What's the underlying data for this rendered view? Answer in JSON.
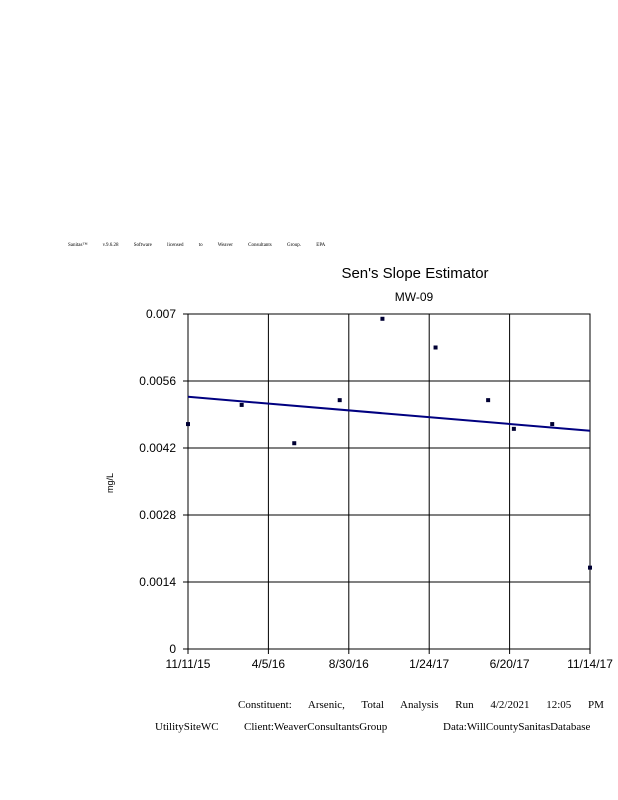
{
  "banner": "Sanitas™ v.9.6.28 Software licensed to Weaver Consultants Group. EPA",
  "chart_data": {
    "type": "scatter",
    "title": "Sen's Slope Estimator",
    "subtitle": "MW-09",
    "ylabel": "mg/L",
    "xlabel": "",
    "x_ticks": [
      "11/11/15",
      "4/5/16",
      "8/30/16",
      "1/24/17",
      "6/20/17",
      "11/14/17"
    ],
    "y_ticks": [
      "0.007",
      "0.0056",
      "0.0042",
      "0.0028",
      "0.0014",
      "0"
    ],
    "xlim": [
      "2015-11-11",
      "2017-11-14"
    ],
    "ylim": [
      0,
      0.007
    ],
    "grid": true,
    "points": [
      {
        "x": "2015-11-11",
        "y": 0.0047
      },
      {
        "x": "2016-02-17",
        "y": 0.0051
      },
      {
        "x": "2016-05-23",
        "y": 0.0043
      },
      {
        "x": "2016-08-14",
        "y": 0.0052
      },
      {
        "x": "2016-10-31",
        "y": 0.0069
      },
      {
        "x": "2017-02-05",
        "y": 0.0063
      },
      {
        "x": "2017-05-12",
        "y": 0.0052
      },
      {
        "x": "2017-06-28",
        "y": 0.0046
      },
      {
        "x": "2017-09-06",
        "y": 0.0047
      },
      {
        "x": "2017-11-14",
        "y": 0.0017
      }
    ],
    "trend_line": {
      "x": [
        "2015-11-11",
        "2017-11-14"
      ],
      "y": [
        0.00527,
        0.00456
      ]
    },
    "colors": {
      "points": "#000033",
      "trend": "#000080",
      "grid": "#000000"
    }
  },
  "footer": {
    "line1": "Constituent: Arsenic, Total Analysis Run 4/2/2021 12:05 PM",
    "site": "UtilitySiteWC",
    "client": "Client:WeaverConsultantsGroup",
    "data": "Data:WillCountySanitasDatabase"
  }
}
